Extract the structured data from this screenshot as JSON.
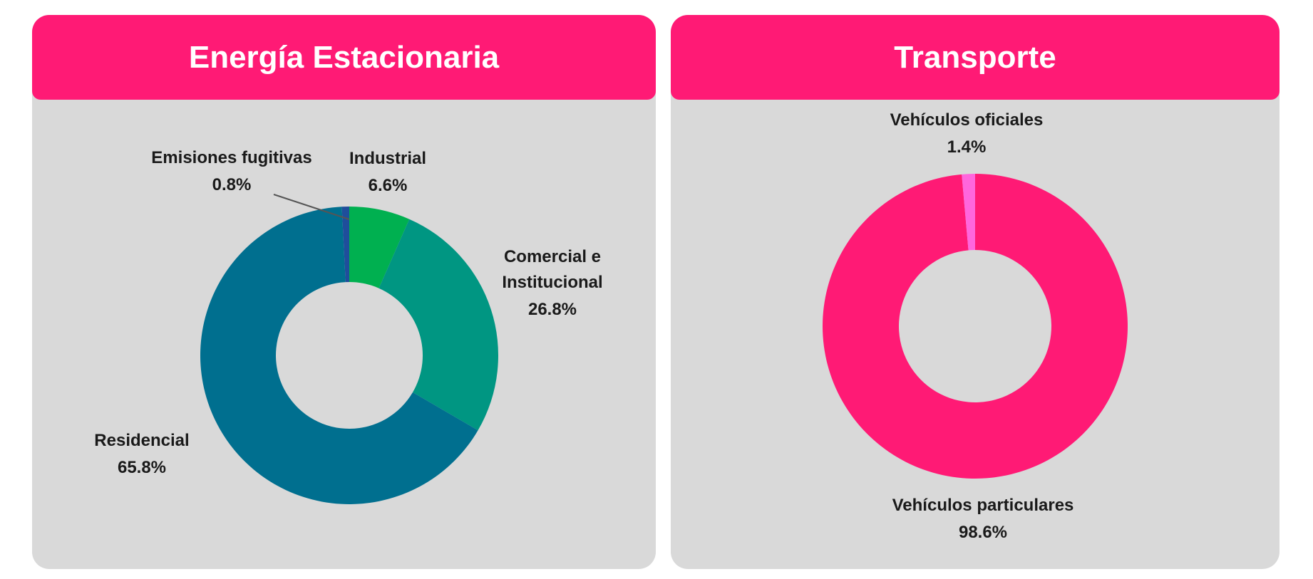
{
  "chart_data": [
    {
      "type": "pie",
      "title": "Energía Estacionaria",
      "categories": [
        "Industrial",
        "Comercial e Institucional",
        "Residencial",
        "Emisiones fugitivas"
      ],
      "values": [
        6.6,
        26.8,
        65.8,
        0.8
      ],
      "value_labels": [
        "6.6%",
        "26.8%",
        "65.8%",
        "0.8%"
      ],
      "colors": [
        "#00b050",
        "#009682",
        "#006f8f",
        "#1f4e9b"
      ]
    },
    {
      "type": "pie",
      "title": "Transporte",
      "categories": [
        "Vehículos particulares",
        "Vehículos oficiales"
      ],
      "values": [
        98.6,
        1.4
      ],
      "value_labels": [
        "98.6%",
        "1.4%"
      ],
      "colors": [
        "#ff1a75",
        "#ff66dd"
      ]
    }
  ]
}
